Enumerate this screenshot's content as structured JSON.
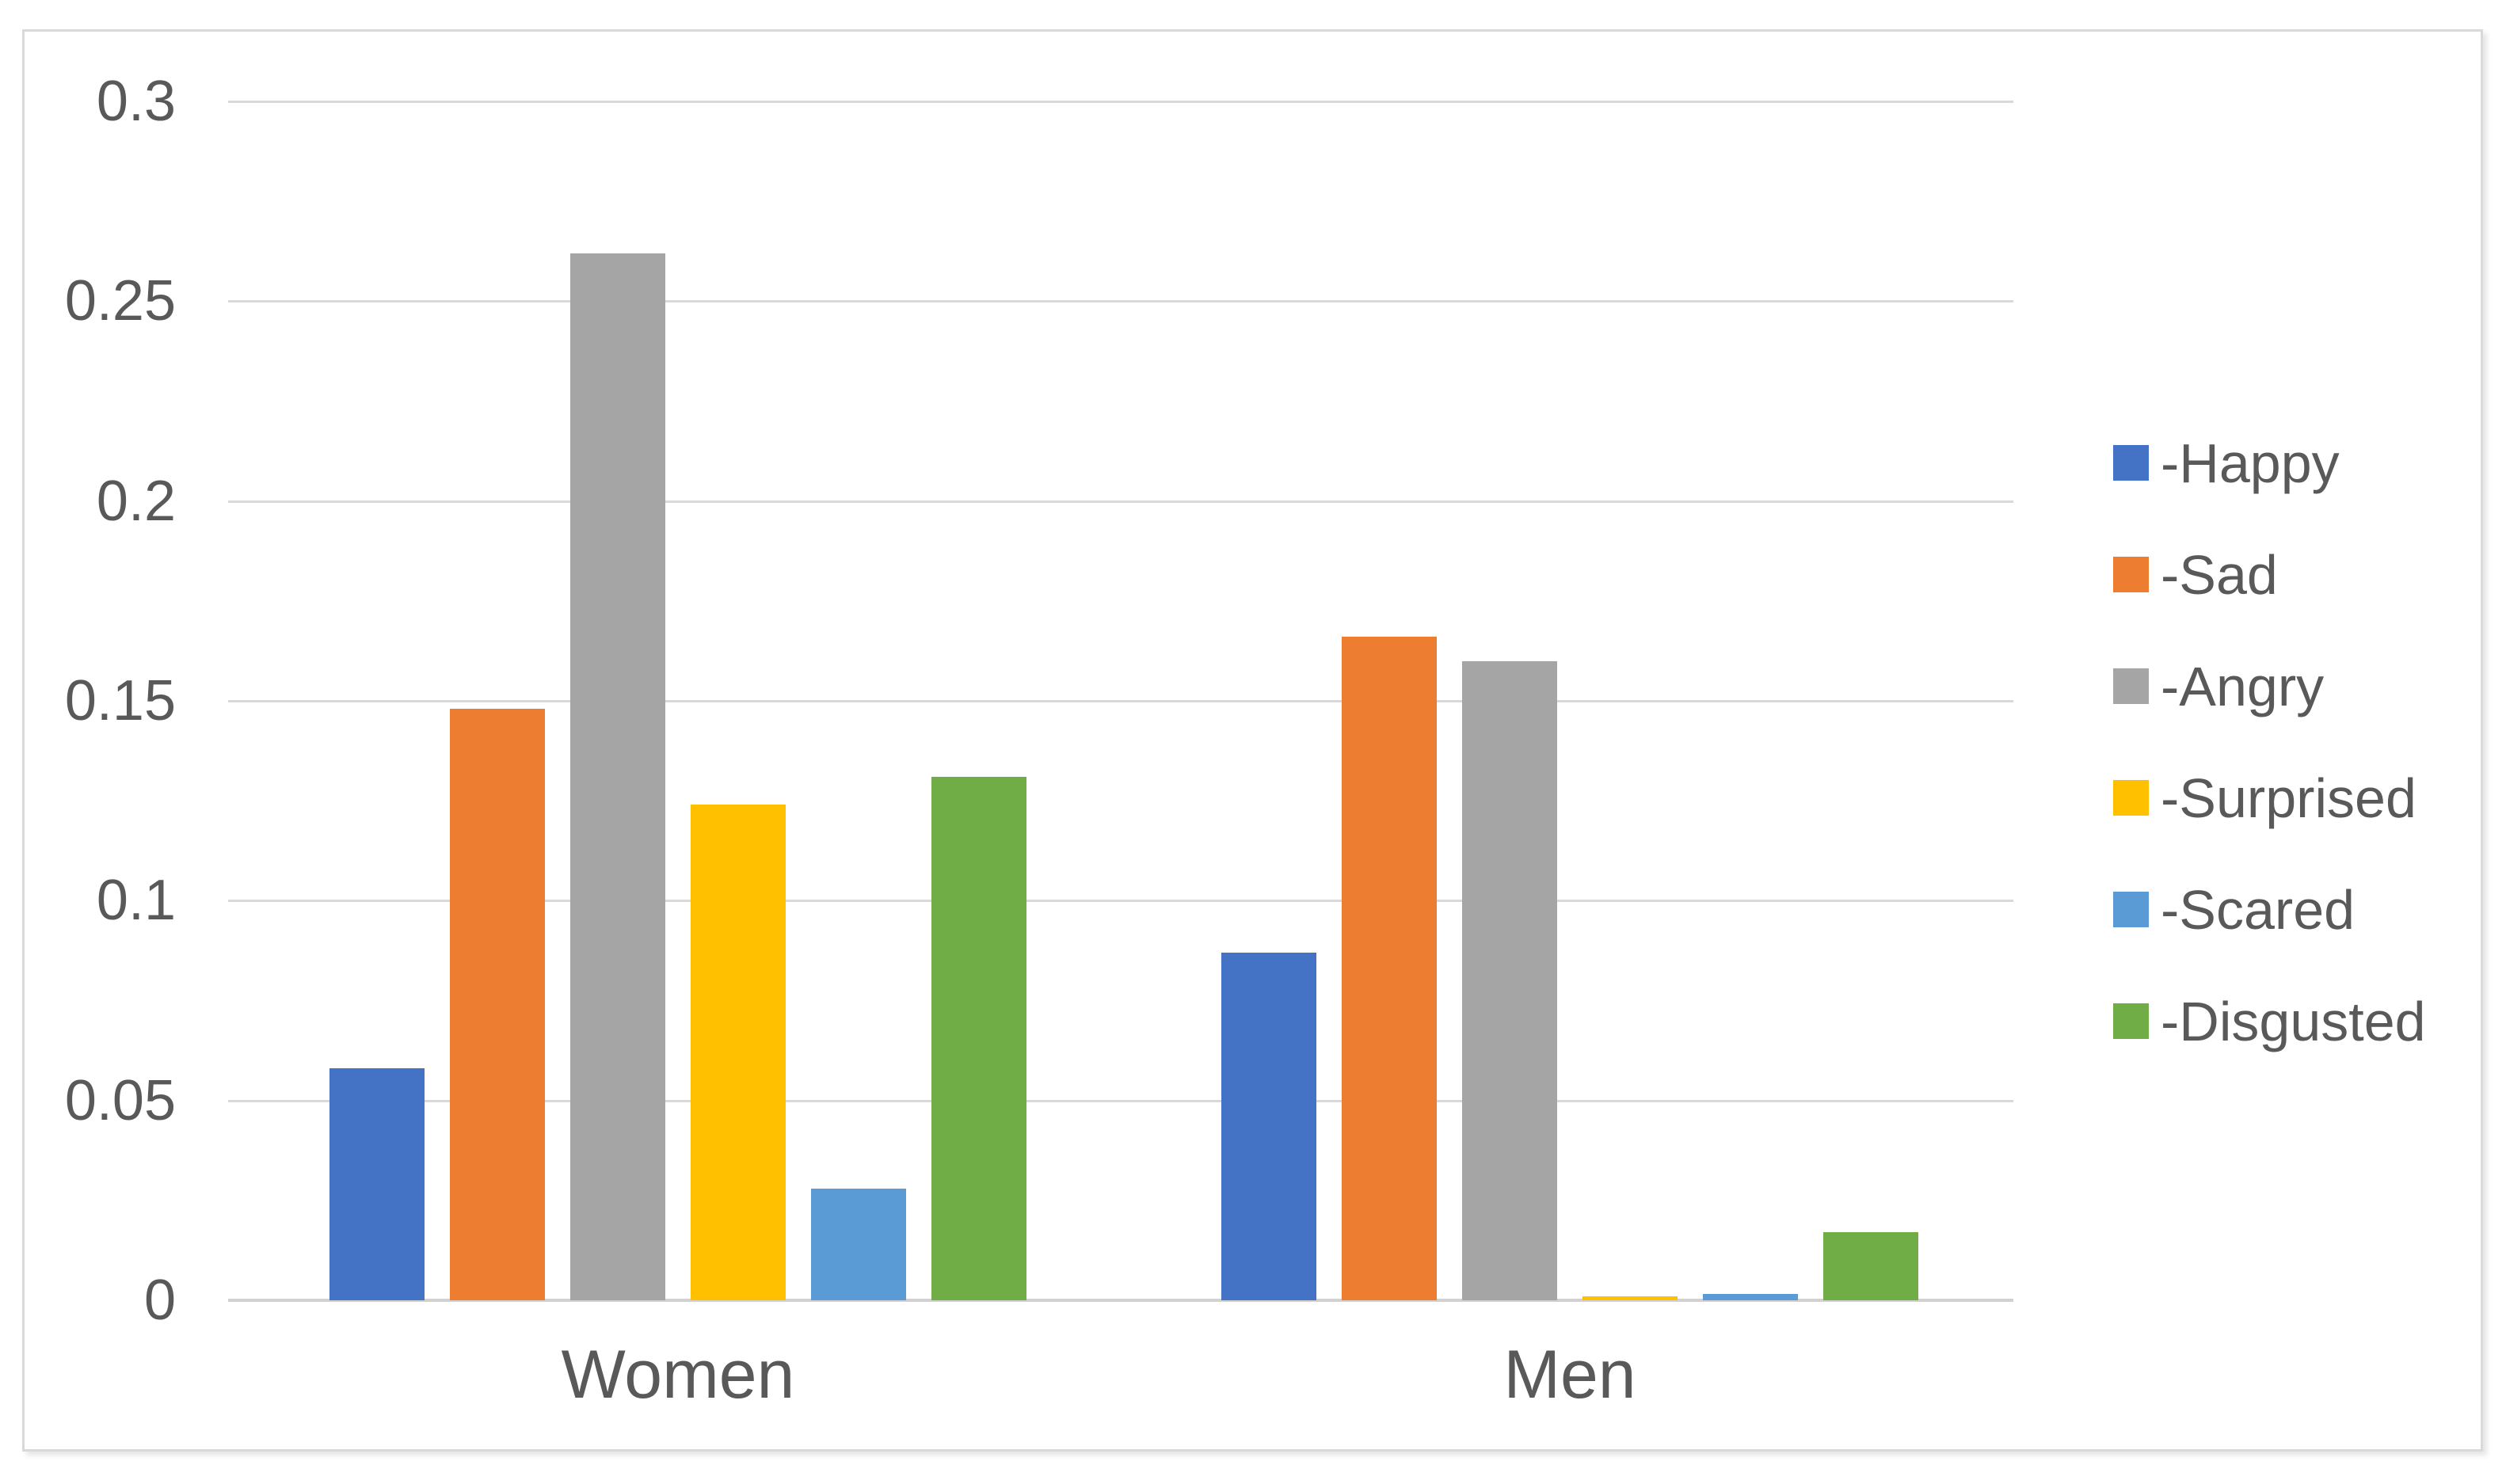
{
  "chart_data": {
    "type": "bar",
    "title": "",
    "xlabel": "",
    "ylabel": "",
    "categories": [
      "Women",
      "Men"
    ],
    "series": [
      {
        "name": "-Happy",
        "color": "#4472C4",
        "values": [
          0.058,
          0.087
        ]
      },
      {
        "name": "-Sad",
        "color": "#ED7D31",
        "values": [
          0.148,
          0.166
        ]
      },
      {
        "name": "-Angry",
        "color": "#A5A5A5",
        "values": [
          0.262,
          0.16
        ]
      },
      {
        "name": "-Surprised",
        "color": "#FFC000",
        "values": [
          0.124,
          0.001
        ]
      },
      {
        "name": "-Scared",
        "color": "#5B9BD5",
        "values": [
          0.028,
          0.0015
        ]
      },
      {
        "name": "-Disgusted",
        "color": "#70AD47",
        "values": [
          0.131,
          0.017
        ]
      }
    ],
    "ylim": [
      0,
      0.3
    ],
    "yticks": [
      {
        "value": 0,
        "label": "0"
      },
      {
        "value": 0.05,
        "label": "0.05"
      },
      {
        "value": 0.1,
        "label": "0.1"
      },
      {
        "value": 0.15,
        "label": "0.15"
      },
      {
        "value": 0.2,
        "label": "0.2"
      },
      {
        "value": 0.25,
        "label": "0.25"
      },
      {
        "value": 0.3,
        "label": "0.3"
      }
    ],
    "grid": true,
    "legend_position": "right"
  },
  "style": {
    "text_color": "#595959",
    "gridline_color": "#D9D9D9",
    "axis_line_color": "#D2D0D0",
    "border_color": "#D9D9D9",
    "background": "#FFFFFF"
  }
}
